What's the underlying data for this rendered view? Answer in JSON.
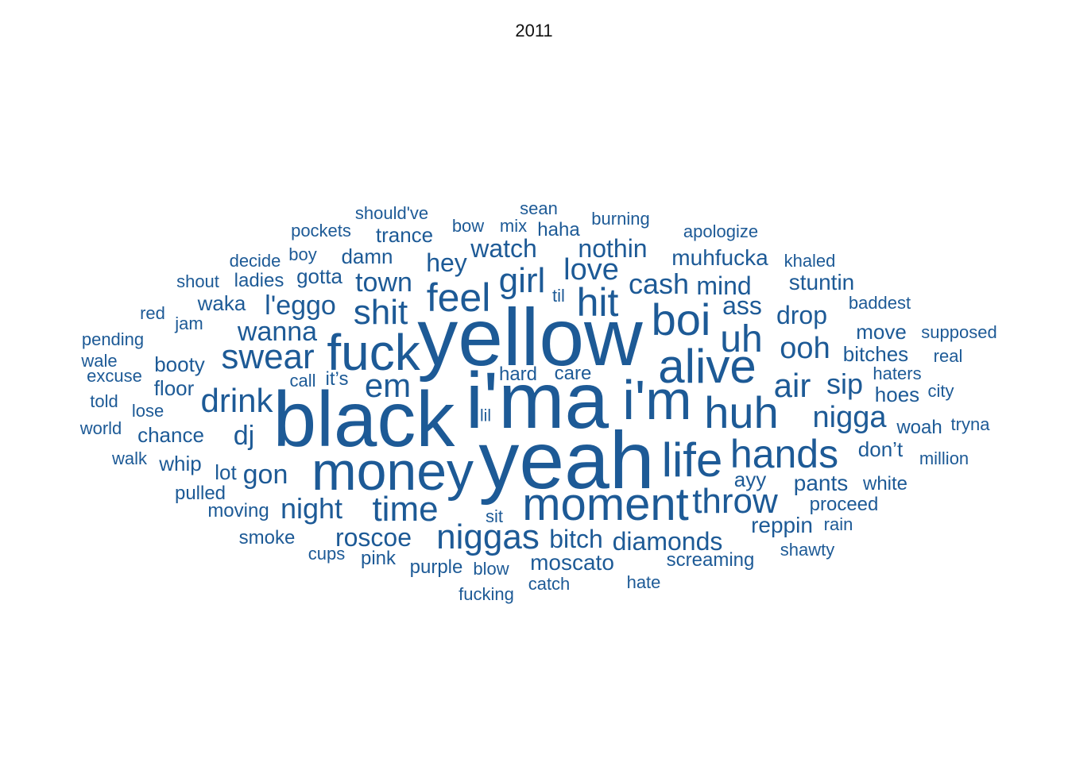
{
  "chart_data": {
    "type": "wordcloud",
    "title": "2011",
    "color": "#1d5a96",
    "background": "#ffffff",
    "words": [
      {
        "text": "yellow",
        "weight": 98
      },
      {
        "text": "black",
        "weight": 94
      },
      {
        "text": "i'ma",
        "weight": 96
      },
      {
        "text": "yeah",
        "weight": 98
      },
      {
        "text": "money",
        "weight": 64
      },
      {
        "text": "fuck",
        "weight": 60
      },
      {
        "text": "i'm",
        "weight": 66
      },
      {
        "text": "alive",
        "weight": 56
      },
      {
        "text": "moment",
        "weight": 54
      },
      {
        "text": "boi",
        "weight": 52
      },
      {
        "text": "huh",
        "weight": 52
      },
      {
        "text": "life",
        "weight": 56
      },
      {
        "text": "hands",
        "weight": 46
      },
      {
        "text": "hit",
        "weight": 46
      },
      {
        "text": "feel",
        "weight": 46
      },
      {
        "text": "swear",
        "weight": 40
      },
      {
        "text": "throw",
        "weight": 40
      },
      {
        "text": "niggas",
        "weight": 40
      },
      {
        "text": "time",
        "weight": 40
      },
      {
        "text": "girl",
        "weight": 40
      },
      {
        "text": "uh",
        "weight": 44
      },
      {
        "text": "shit",
        "weight": 40
      },
      {
        "text": "drink",
        "weight": 38
      },
      {
        "text": "em",
        "weight": 38
      },
      {
        "text": "air",
        "weight": 38
      },
      {
        "text": "nigga",
        "weight": 34
      },
      {
        "text": "ooh",
        "weight": 34
      },
      {
        "text": "night",
        "weight": 32
      },
      {
        "text": "love",
        "weight": 34
      },
      {
        "text": "cash",
        "weight": 32
      },
      {
        "text": "dj",
        "weight": 30
      },
      {
        "text": "wanna",
        "weight": 30
      },
      {
        "text": "l'eggo",
        "weight": 30
      },
      {
        "text": "sip",
        "weight": 32
      },
      {
        "text": "gon",
        "weight": 30
      },
      {
        "text": "town",
        "weight": 30
      },
      {
        "text": "roscoe",
        "weight": 28
      },
      {
        "text": "diamonds",
        "weight": 28
      },
      {
        "text": "bitch",
        "weight": 28
      },
      {
        "text": "hey",
        "weight": 28
      },
      {
        "text": "drop",
        "weight": 28
      },
      {
        "text": "mind",
        "weight": 28
      },
      {
        "text": "watch",
        "weight": 28
      },
      {
        "text": "nothin",
        "weight": 28
      },
      {
        "text": "ass",
        "weight": 28
      },
      {
        "text": "muhfucka",
        "weight": 24
      },
      {
        "text": "stuntin",
        "weight": 24
      },
      {
        "text": "pants",
        "weight": 24
      },
      {
        "text": "moscato",
        "weight": 24
      },
      {
        "text": "reppin",
        "weight": 24
      },
      {
        "text": "ayy",
        "weight": 22
      },
      {
        "text": "trance",
        "weight": 22
      },
      {
        "text": "damn",
        "weight": 22
      },
      {
        "text": "move",
        "weight": 22
      },
      {
        "text": "bitches",
        "weight": 22
      },
      {
        "text": "booty",
        "weight": 22
      },
      {
        "text": "chance",
        "weight": 22
      },
      {
        "text": "lot",
        "weight": 22
      },
      {
        "text": "whip",
        "weight": 22
      },
      {
        "text": "floor",
        "weight": 22
      },
      {
        "text": "waka",
        "weight": 22
      },
      {
        "text": "gotta",
        "weight": 22
      },
      {
        "text": "hoes",
        "weight": 22
      },
      {
        "text": "woah",
        "weight": 20
      },
      {
        "text": "don’t",
        "weight": 22
      },
      {
        "text": "care",
        "weight": 20
      },
      {
        "text": "hard",
        "weight": 20
      },
      {
        "text": "haha",
        "weight": 20
      },
      {
        "text": "purple",
        "weight": 20
      },
      {
        "text": "pink",
        "weight": 20
      },
      {
        "text": "screaming",
        "weight": 20
      },
      {
        "text": "pulled",
        "weight": 20
      },
      {
        "text": "moving",
        "weight": 20
      },
      {
        "text": "smoke",
        "weight": 20
      },
      {
        "text": "ladies",
        "weight": 20
      },
      {
        "text": "proceed",
        "weight": 20
      },
      {
        "text": "white",
        "weight": 20
      },
      {
        "text": "it’s",
        "weight": 20
      },
      {
        "text": "sit",
        "weight": 18
      },
      {
        "text": "jam",
        "weight": 18
      },
      {
        "text": "lose",
        "weight": 18
      },
      {
        "text": "blow",
        "weight": 18
      },
      {
        "text": "catch",
        "weight": 18
      },
      {
        "text": "hate",
        "weight": 18
      },
      {
        "text": "fucking",
        "weight": 18
      },
      {
        "text": "shawty",
        "weight": 18
      },
      {
        "text": "rain",
        "weight": 18
      },
      {
        "text": "cups",
        "weight": 18
      },
      {
        "text": "til",
        "weight": 18
      },
      {
        "text": "lil",
        "weight": 17
      },
      {
        "text": "call",
        "weight": 18
      },
      {
        "text": "shout",
        "weight": 18
      },
      {
        "text": "decide",
        "weight": 18
      },
      {
        "text": "boy",
        "weight": 18
      },
      {
        "text": "pockets",
        "weight": 18
      },
      {
        "text": "should've",
        "weight": 18
      },
      {
        "text": "bow",
        "weight": 18
      },
      {
        "text": "mix",
        "weight": 18
      },
      {
        "text": "sean",
        "weight": 18
      },
      {
        "text": "burning",
        "weight": 18
      },
      {
        "text": "apologize",
        "weight": 18
      },
      {
        "text": "khaled",
        "weight": 18
      },
      {
        "text": "baddest",
        "weight": 18
      },
      {
        "text": "supposed",
        "weight": 18
      },
      {
        "text": "real",
        "weight": 18
      },
      {
        "text": "haters",
        "weight": 18
      },
      {
        "text": "city",
        "weight": 18
      },
      {
        "text": "tryna",
        "weight": 18
      },
      {
        "text": "million",
        "weight": 18
      },
      {
        "text": "red",
        "weight": 18
      },
      {
        "text": "pending",
        "weight": 18
      },
      {
        "text": "wale",
        "weight": 18
      },
      {
        "text": "excuse",
        "weight": 18
      },
      {
        "text": "told",
        "weight": 18
      },
      {
        "text": "world",
        "weight": 18
      },
      {
        "text": "walk",
        "weight": 18
      }
    ]
  }
}
